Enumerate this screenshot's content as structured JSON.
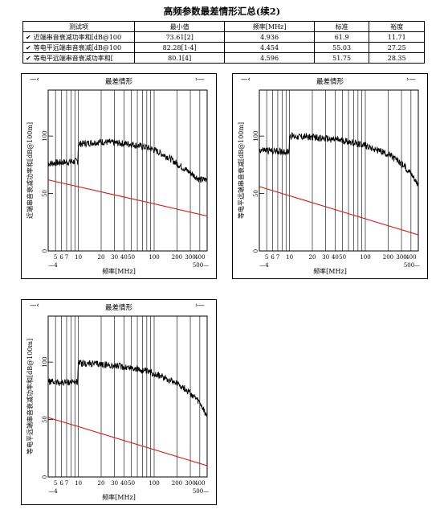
{
  "page_title": "高频参数最差情形汇总(续2)",
  "table": {
    "headers": [
      "测试项",
      "最小值",
      "频率[MHz]",
      "标准",
      "裕度"
    ],
    "rows": [
      [
        "近端串音衰减功率和[dB@100",
        "73.61[2]",
        "4.936",
        "61.9",
        "11.71"
      ],
      [
        "等电平远端串音衰减[dB@100",
        "82.28[1-4]",
        "4.454",
        "55.03",
        "27.25"
      ],
      [
        "等电平远端串音衰减功率和[",
        "80.1[4]",
        "4.596",
        "51.75",
        "28.35"
      ]
    ]
  },
  "chart_data": [
    {
      "type": "line",
      "title": "最差情形",
      "xlabel": "频率[MHz]",
      "ylabel": "近端串音衰减功率和[dB@100m]",
      "x_scale": "log",
      "xlim": [
        4,
        500
      ],
      "ylim": [
        0,
        140
      ],
      "x_ticks": [
        5,
        6,
        7,
        10,
        20,
        30,
        40,
        50,
        100,
        200,
        300,
        400
      ],
      "x_edge_labels": [
        "4",
        "500"
      ],
      "y_ticks": [
        0,
        50,
        100
      ],
      "series": [
        {
          "color": "#000000",
          "points": [
            [
              4,
              76
            ],
            [
              6,
              77
            ],
            [
              9.8,
              78
            ],
            [
              10,
              93
            ],
            [
              20,
              95
            ],
            [
              50,
              93
            ],
            [
              80,
              90
            ],
            [
              100,
              88
            ],
            [
              150,
              82
            ],
            [
              200,
              76
            ],
            [
              300,
              68
            ],
            [
              400,
              62
            ],
            [
              500,
              62
            ]
          ]
        },
        {
          "color": "#dd1111",
          "points": [
            [
              4,
              61.9
            ],
            [
              10,
              55.9
            ],
            [
              30,
              48.8
            ],
            [
              100,
              41
            ],
            [
              200,
              36.4
            ],
            [
              500,
              30.4
            ]
          ]
        }
      ]
    },
    {
      "type": "line",
      "title": "最差情形",
      "xlabel": "频率[MHz]",
      "ylabel": "等电平远端串音衰减[dB@100m]",
      "x_scale": "log",
      "xlim": [
        4,
        500
      ],
      "ylim": [
        0,
        140
      ],
      "x_ticks": [
        5,
        6,
        7,
        10,
        20,
        30,
        40,
        50,
        100,
        200,
        300,
        400
      ],
      "x_edge_labels": [
        "4",
        "500"
      ],
      "y_ticks": [
        0,
        50,
        100
      ],
      "series": [
        {
          "color": "#000000",
          "points": [
            [
              4,
              88
            ],
            [
              6,
              87
            ],
            [
              9.8,
              86
            ],
            [
              10,
              100
            ],
            [
              20,
              99
            ],
            [
              50,
              96
            ],
            [
              100,
              92
            ],
            [
              200,
              84
            ],
            [
              300,
              76
            ],
            [
              400,
              68
            ],
            [
              500,
              58
            ]
          ]
        },
        {
          "color": "#dd1111",
          "points": [
            [
              4,
              56
            ],
            [
              10,
              48
            ],
            [
              30,
              38.5
            ],
            [
              100,
              28
            ],
            [
              200,
              22
            ],
            [
              500,
              14
            ]
          ]
        }
      ]
    },
    {
      "type": "line",
      "title": "最差情形",
      "xlabel": "频率[MHz]",
      "ylabel": "等电平远端串音衰减功率和[dB@100m]",
      "x_scale": "log",
      "xlim": [
        4,
        500
      ],
      "ylim": [
        0,
        140
      ],
      "x_ticks": [
        5,
        6,
        7,
        10,
        20,
        30,
        40,
        50,
        100,
        200,
        300,
        400
      ],
      "x_edge_labels": [
        "4",
        "500"
      ],
      "y_ticks": [
        0,
        50,
        100
      ],
      "series": [
        {
          "color": "#000000",
          "points": [
            [
              4,
              83
            ],
            [
              6,
              82
            ],
            [
              9.8,
              83
            ],
            [
              10,
              99
            ],
            [
              20,
              98
            ],
            [
              50,
              95
            ],
            [
              100,
              90
            ],
            [
              200,
              82
            ],
            [
              300,
              73
            ],
            [
              400,
              64
            ],
            [
              500,
              53
            ]
          ]
        },
        {
          "color": "#dd1111",
          "points": [
            [
              4,
              51.75
            ],
            [
              10,
              43.8
            ],
            [
              30,
              34.2
            ],
            [
              100,
              23.8
            ],
            [
              200,
              17.8
            ],
            [
              500,
              9.8
            ]
          ]
        }
      ]
    }
  ]
}
